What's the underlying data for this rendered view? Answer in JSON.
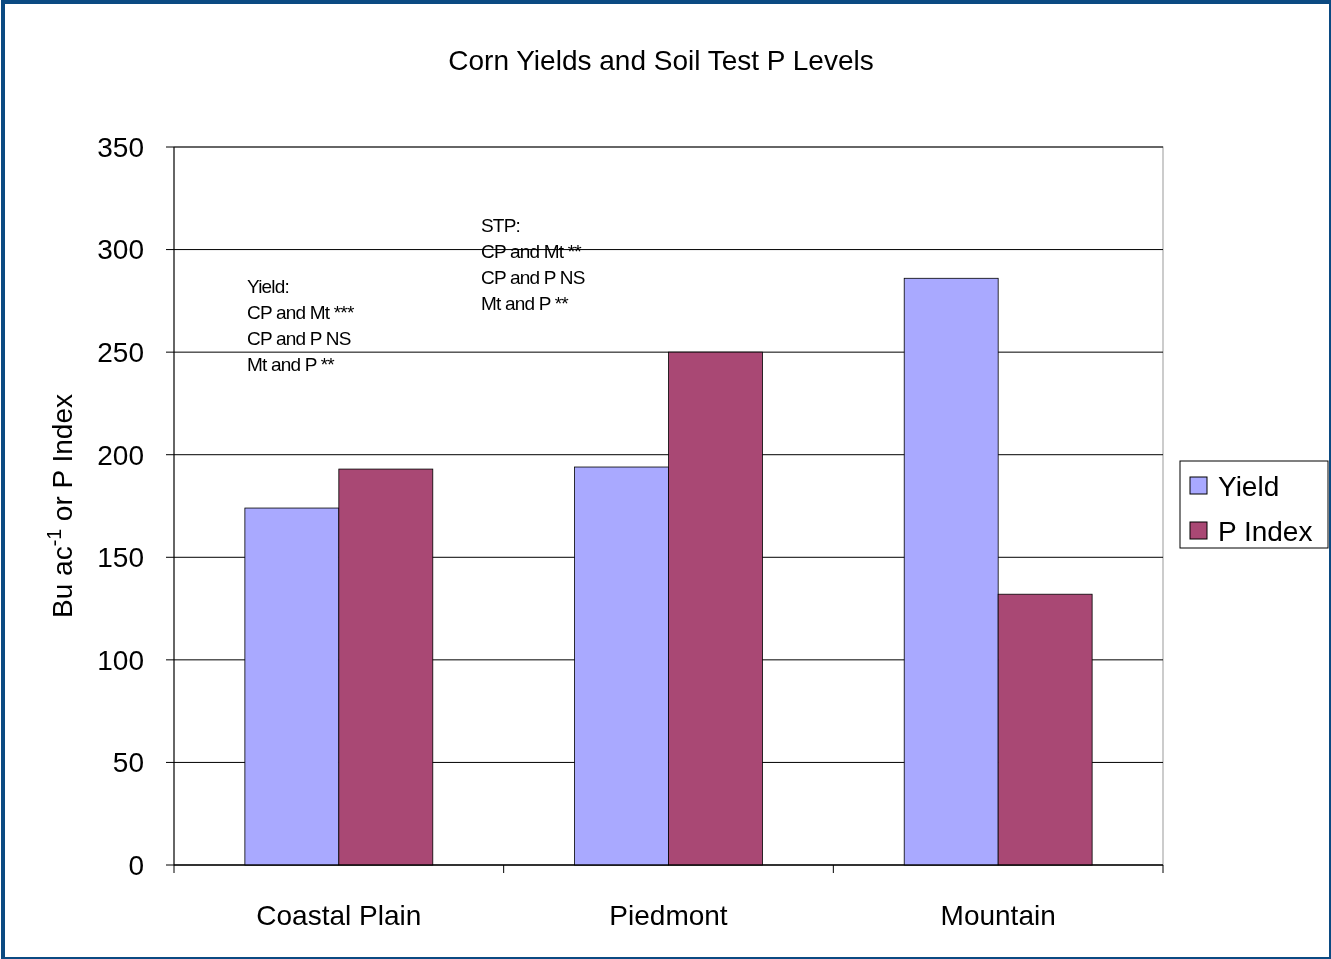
{
  "chart_data": {
    "type": "bar",
    "title": "Corn Yields and Soil Test P Levels",
    "ylabel": "Bu ac$^{-1}$ or P Index",
    "categories": [
      "Coastal Plain",
      "Piedmont",
      "Mountain"
    ],
    "series": [
      {
        "name": "Yield",
        "color": "#a9a9ff",
        "values": [
          174,
          194,
          286
        ]
      },
      {
        "name": "P Index",
        "color": "#a94874",
        "values": [
          193,
          250,
          132
        ]
      }
    ],
    "ylim": [
      0,
      350
    ],
    "yticks": [
      0,
      50,
      100,
      150,
      200,
      250,
      300,
      350
    ],
    "grid": "y",
    "legend": "right",
    "annotations": [
      "Yield:\nCP and Mt ***\nCP and P NS\nMt and P **",
      "STP:\nCP and Mt **\nCP and P NS\nMt and P **"
    ]
  }
}
